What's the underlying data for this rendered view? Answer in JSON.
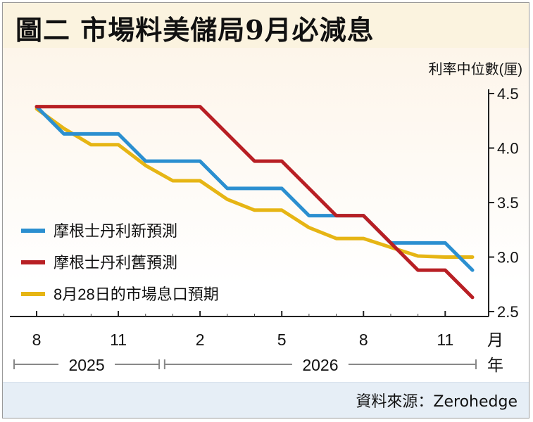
{
  "title": "圖二  市場料美儲局9月必減息",
  "source": "資料來源：Zerohedge",
  "chart_data": {
    "type": "line",
    "title": "圖二  市場料美儲局9月必減息",
    "ylabel": "利率中位數(厘)",
    "xlabel_month": "月",
    "xlabel_year": "年",
    "ylim": [
      2.5,
      4.5
    ],
    "yticks": [
      2.5,
      3.0,
      3.5,
      4.0,
      4.5
    ],
    "ytick_labels": [
      "2.5",
      "3.0",
      "3.5",
      "4.0",
      "4.5"
    ],
    "xlim": [
      0,
      16
    ],
    "xticks": [
      0,
      3,
      6,
      9,
      12,
      15
    ],
    "xtick_labels": [
      "8",
      "11",
      "2",
      "5",
      "8",
      "11"
    ],
    "years": [
      {
        "label": "2025",
        "from": 0,
        "to": 4.5
      },
      {
        "label": "2026",
        "from": 4.7,
        "to": 16
      }
    ],
    "legend_position": "left-middle",
    "series": [
      {
        "name": "摩根士丹利新預測",
        "color": "#2b8fd0",
        "x": [
          0,
          1,
          3,
          4,
          6,
          7,
          9,
          10,
          12,
          13,
          15,
          16
        ],
        "y": [
          4.38,
          4.13,
          4.13,
          3.88,
          3.88,
          3.63,
          3.63,
          3.38,
          3.38,
          3.13,
          3.13,
          2.88
        ]
      },
      {
        "name": "摩根士丹利舊預測",
        "color": "#b81f24",
        "x": [
          0,
          6,
          8,
          9,
          11,
          12,
          14,
          15,
          16
        ],
        "y": [
          4.38,
          4.38,
          3.88,
          3.88,
          3.38,
          3.38,
          2.88,
          2.88,
          2.63
        ]
      },
      {
        "name": "8月28日的市場息口預期",
        "color": "#e6b514",
        "x": [
          0,
          1,
          2,
          3,
          4,
          5,
          6,
          7,
          8,
          9,
          10,
          11,
          12,
          13,
          14,
          15,
          16
        ],
        "y": [
          4.36,
          4.18,
          4.03,
          4.03,
          3.84,
          3.7,
          3.7,
          3.53,
          3.43,
          3.43,
          3.27,
          3.17,
          3.17,
          3.09,
          3.01,
          3.0,
          3.0
        ]
      }
    ]
  }
}
